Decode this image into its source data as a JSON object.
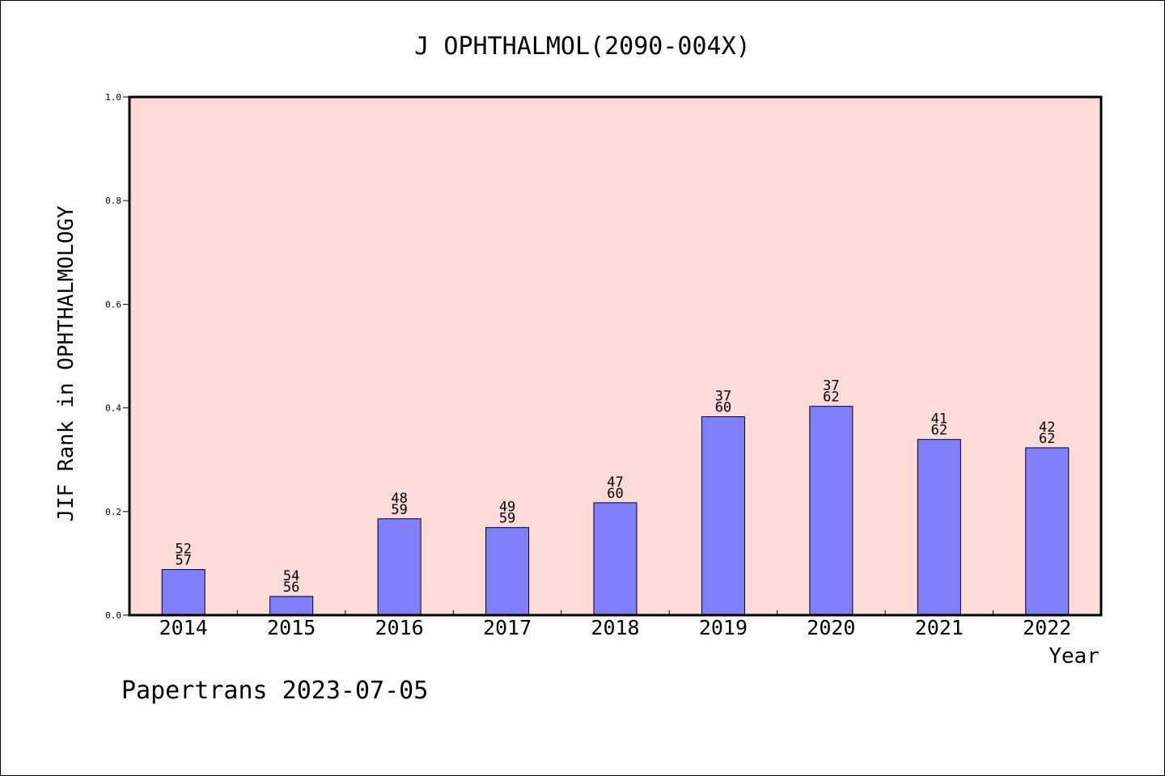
{
  "chart_data": {
    "type": "bar",
    "title": "J OPHTHALMOL(2090-004X)",
    "xlabel": "Year",
    "ylabel": "JIF Rank in OPHTHALMOLOGY",
    "ylim": [
      0,
      1.0
    ],
    "yticks": [
      "0.0",
      "0.2",
      "0.4",
      "0.6",
      "0.8",
      "1.0"
    ],
    "grid": false,
    "categories": [
      "2014",
      "2015",
      "2016",
      "2017",
      "2018",
      "2019",
      "2020",
      "2021",
      "2022"
    ],
    "values": [
      0.088,
      0.036,
      0.186,
      0.169,
      0.217,
      0.383,
      0.403,
      0.339,
      0.323
    ],
    "rank": [
      "52",
      "54",
      "48",
      "49",
      "47",
      "37",
      "37",
      "41",
      "42"
    ],
    "total": [
      "57",
      "56",
      "59",
      "59",
      "60",
      "60",
      "62",
      "62",
      "62"
    ],
    "colors": {
      "plot_bg": "#fddbd8",
      "bar": "#8080ff",
      "axis": "#000000"
    }
  },
  "footer": "Papertrans 2023-07-05"
}
